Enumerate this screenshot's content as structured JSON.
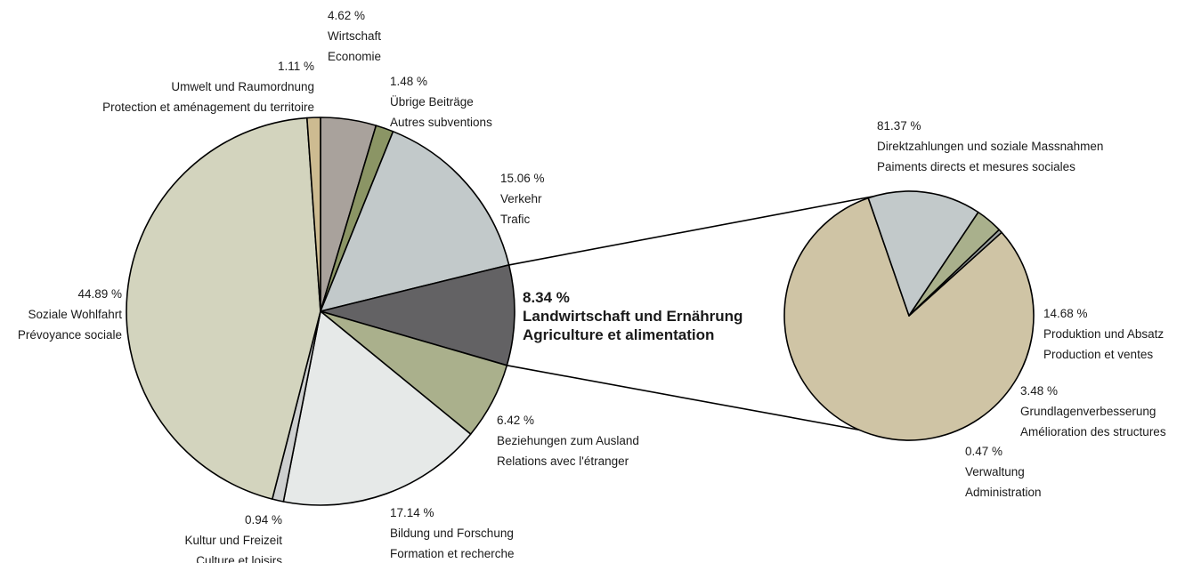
{
  "chart_data": [
    {
      "type": "pie",
      "slices": [
        {
          "value": 4.62,
          "pct_label": "4.62 %",
          "de": "Wirtschaft",
          "fr": "Economie",
          "color": "#a9a29c"
        },
        {
          "value": 1.48,
          "pct_label": "1.48 %",
          "de": "Übrige Beiträge",
          "fr": "Autres subventions",
          "color": "#8b9565"
        },
        {
          "value": 15.06,
          "pct_label": "15.06 %",
          "de": "Verkehr",
          "fr": "Trafic",
          "color": "#c2c9ca"
        },
        {
          "value": 8.34,
          "pct_label": "8.34 %",
          "de": "Landwirtschaft und Ernährung",
          "fr": "Agriculture et alimentation",
          "color": "#636264",
          "highlight": true
        },
        {
          "value": 6.42,
          "pct_label": "6.42 %",
          "de": "Beziehungen zum Ausland",
          "fr": "Relations avec l'étranger",
          "color": "#aab08c"
        },
        {
          "value": 17.14,
          "pct_label": "17.14 %",
          "de": "Bildung und Forschung",
          "fr": "Formation et recherche",
          "color": "#e6e9e8"
        },
        {
          "value": 0.94,
          "pct_label": "0.94 %",
          "de": "Kultur und Freizeit",
          "fr": "Culture et loisirs",
          "color": "#cdcfcf"
        },
        {
          "value": 44.89,
          "pct_label": "44.89 %",
          "de": "Soziale Wohlfahrt",
          "fr": "Prévoyance sociale",
          "color": "#d3d4be"
        },
        {
          "value": 1.11,
          "pct_label": "1.11 %",
          "de": "Umwelt und Raumordnung",
          "fr": "Protection et aménagement du territoire",
          "color": "#cdbb91"
        }
      ]
    },
    {
      "type": "pie",
      "slices": [
        {
          "value": 81.37,
          "pct_label": "81.37 %",
          "de": "Direktzahlungen und soziale Massnahmen",
          "fr": "Paiments directs et mesures sociales",
          "color": "#cfc4a5"
        },
        {
          "value": 14.68,
          "pct_label": "14.68 %",
          "de": "Produktion und Absatz",
          "fr": "Production et ventes",
          "color": "#c2c9ca"
        },
        {
          "value": 3.48,
          "pct_label": "3.48 %",
          "de": "Grundlagenverbesserung",
          "fr": "Amélioration des structures",
          "color": "#a9b08c"
        },
        {
          "value": 0.47,
          "pct_label": "0.47 %",
          "de": "Verwaltung",
          "fr": "Administration",
          "color": "#9ea3a2"
        }
      ]
    }
  ]
}
